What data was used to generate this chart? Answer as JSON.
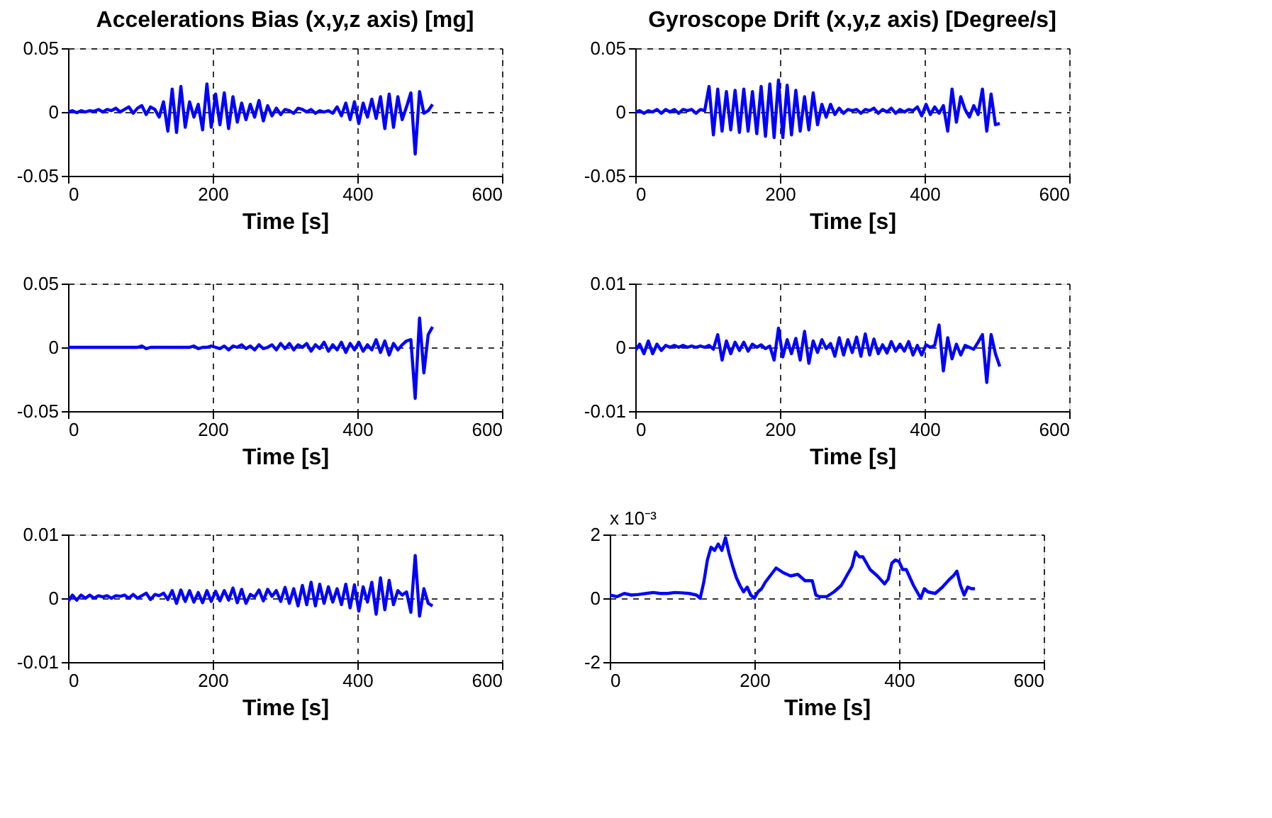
{
  "chart_data": [
    {
      "type": "line",
      "title": "Accelerations Bias (x,y,z axis) [mg]",
      "xlabel": "Time [s]",
      "xlim": [
        0,
        600
      ],
      "xticks": [
        0,
        200,
        400,
        600
      ],
      "ylim": [
        -0.05,
        0.05
      ],
      "yticks": [
        -0.05,
        0,
        0.05
      ],
      "grid": true,
      "x": [
        0,
        6,
        12,
        18,
        24,
        30,
        36,
        42,
        48,
        54,
        60,
        66,
        72,
        78,
        84,
        90,
        96,
        102,
        108,
        114,
        120,
        126,
        132,
        138,
        144,
        150,
        156,
        162,
        168,
        174,
        180,
        186,
        192,
        198,
        204,
        210,
        216,
        222,
        228,
        234,
        240,
        246,
        252,
        258,
        264,
        270,
        276,
        282,
        288,
        294,
        300,
        306,
        312,
        318,
        324,
        330,
        336,
        342,
        348,
        354,
        360,
        366,
        372,
        378,
        384,
        390,
        396,
        402,
        408,
        414,
        420,
        426,
        432,
        438,
        444,
        450,
        456,
        462,
        468,
        474,
        480,
        486,
        492,
        498,
        504
      ],
      "series": [
        {
          "color": "#0000ff",
          "values": [
            0,
            0.001,
            -0.0005,
            0.001,
            0,
            0.001,
            0.0005,
            0.002,
            0,
            0.002,
            0.001,
            0.003,
            0,
            0.002,
            0.004,
            -0.001,
            0.003,
            0.005,
            -0.002,
            0.004,
            0.002,
            -0.004,
            0.008,
            -0.015,
            0.018,
            -0.016,
            0.02,
            -0.012,
            0.008,
            -0.004,
            0.006,
            -0.014,
            0.022,
            -0.012,
            0.014,
            -0.01,
            0.015,
            -0.013,
            0.012,
            -0.008,
            0.007,
            -0.006,
            0.006,
            -0.004,
            0.009,
            -0.007,
            0.005,
            -0.003,
            0.003,
            -0.002,
            0.002,
            0.001,
            -0.001,
            0.003,
            0.002,
            0,
            0.002,
            -0.001,
            0.001,
            0,
            0.001,
            -0.001,
            0.004,
            -0.003,
            0.007,
            -0.006,
            0.008,
            -0.009,
            0.007,
            -0.004,
            0.01,
            -0.005,
            0.012,
            -0.013,
            0.014,
            -0.012,
            0.012,
            -0.006,
            0.004,
            0.015,
            -0.033,
            0.016,
            -0.001,
            0.001,
            0.006
          ]
        }
      ]
    },
    {
      "type": "line",
      "title": "Gyroscope Drift (x,y,z axis) [Degree/s]",
      "xlabel": "Time [s]",
      "xlim": [
        0,
        600
      ],
      "xticks": [
        0,
        200,
        400,
        600
      ],
      "ylim": [
        -0.05,
        0.05
      ],
      "yticks": [
        -0.05,
        0,
        0.05
      ],
      "grid": true,
      "x": [
        0,
        6,
        12,
        18,
        24,
        30,
        36,
        42,
        48,
        54,
        60,
        66,
        72,
        78,
        84,
        90,
        96,
        102,
        108,
        114,
        120,
        126,
        132,
        138,
        144,
        150,
        156,
        162,
        168,
        174,
        180,
        186,
        192,
        198,
        204,
        210,
        216,
        222,
        228,
        234,
        240,
        246,
        252,
        258,
        264,
        270,
        276,
        282,
        288,
        294,
        300,
        306,
        312,
        318,
        324,
        330,
        336,
        342,
        348,
        354,
        360,
        366,
        372,
        378,
        384,
        390,
        396,
        402,
        408,
        414,
        420,
        426,
        432,
        438,
        444,
        450,
        456,
        462,
        468,
        474,
        480,
        486,
        492,
        498,
        504
      ],
      "series": [
        {
          "color": "#0000ff",
          "values": [
            0,
            0.001,
            -0.001,
            0.001,
            0,
            0.002,
            -0.001,
            0.002,
            0,
            0.002,
            -0.001,
            0.002,
            0.001,
            0.002,
            -0.001,
            0.002,
            0.001,
            0.02,
            -0.018,
            0.018,
            -0.015,
            0.016,
            -0.014,
            0.017,
            -0.016,
            0.018,
            -0.015,
            0.016,
            -0.017,
            0.02,
            -0.019,
            0.022,
            -0.02,
            0.025,
            -0.02,
            0.021,
            -0.018,
            0.017,
            -0.015,
            0.012,
            -0.014,
            0.015,
            -0.01,
            0.006,
            -0.004,
            0.006,
            -0.002,
            0.003,
            -0.001,
            0.002,
            0.001,
            0.002,
            -0.001,
            0.002,
            0.001,
            0.003,
            -0.001,
            0.002,
            0,
            0.003,
            -0.001,
            0.002,
            0,
            0.002,
            0.001,
            0.004,
            -0.003,
            0.006,
            -0.002,
            0.004,
            -0.001,
            0.005,
            -0.015,
            0.018,
            -0.008,
            0.012,
            0.002,
            -0.004,
            0.005,
            -0.002,
            0.018,
            -0.015,
            0.014,
            -0.01,
            -0.009
          ]
        }
      ]
    },
    {
      "type": "line",
      "xlabel": "Time [s]",
      "xlim": [
        0,
        600
      ],
      "xticks": [
        0,
        200,
        400,
        600
      ],
      "ylim": [
        -0.05,
        0.05
      ],
      "yticks": [
        -0.05,
        0,
        0.05
      ],
      "grid": true,
      "x": [
        0,
        6,
        12,
        18,
        24,
        30,
        36,
        42,
        48,
        54,
        60,
        66,
        72,
        78,
        84,
        90,
        96,
        102,
        108,
        114,
        120,
        126,
        132,
        138,
        144,
        150,
        156,
        162,
        168,
        174,
        180,
        186,
        192,
        198,
        204,
        210,
        216,
        222,
        228,
        234,
        240,
        246,
        252,
        258,
        264,
        270,
        276,
        282,
        288,
        294,
        300,
        306,
        312,
        318,
        324,
        330,
        336,
        342,
        348,
        354,
        360,
        366,
        372,
        378,
        384,
        390,
        396,
        402,
        408,
        414,
        420,
        426,
        432,
        438,
        444,
        450,
        456,
        462,
        468,
        474,
        480,
        486,
        492,
        498,
        504
      ],
      "series": [
        {
          "color": "#0000ff",
          "values": [
            0,
            0,
            0,
            0,
            0,
            0,
            0,
            0,
            0,
            0,
            0,
            0,
            0,
            0,
            0,
            0,
            0,
            0.001,
            -0.001,
            0,
            0,
            0,
            0,
            0,
            0,
            0,
            0,
            0,
            0,
            0.001,
            -0.001,
            0,
            0,
            0.001,
            0,
            -0.001,
            0.001,
            -0.002,
            0.001,
            0,
            0.002,
            -0.001,
            0.001,
            -0.002,
            0.002,
            -0.001,
            0,
            0.002,
            -0.002,
            0.003,
            -0.001,
            0.003,
            -0.002,
            0.002,
            0,
            0.003,
            -0.003,
            0.002,
            -0.001,
            0.004,
            -0.003,
            0.002,
            -0.002,
            0.004,
            -0.004,
            0.003,
            -0.002,
            0.004,
            -0.003,
            0.002,
            -0.002,
            0.006,
            -0.004,
            0.005,
            -0.006,
            0.003,
            -0.002,
            0.002,
            0.005,
            0.006,
            -0.04,
            0.023,
            -0.02,
            0.01,
            0.016
          ]
        }
      ]
    },
    {
      "type": "line",
      "xlabel": "Time [s]",
      "xlim": [
        0,
        600
      ],
      "xticks": [
        0,
        200,
        400,
        600
      ],
      "ylim": [
        -0.01,
        0.01
      ],
      "yticks": [
        -0.01,
        0,
        0.01
      ],
      "grid": true,
      "x": [
        0,
        6,
        12,
        18,
        24,
        30,
        36,
        42,
        48,
        54,
        60,
        66,
        72,
        78,
        84,
        90,
        96,
        102,
        108,
        114,
        120,
        126,
        132,
        138,
        144,
        150,
        156,
        162,
        168,
        174,
        180,
        186,
        192,
        198,
        204,
        210,
        216,
        222,
        228,
        234,
        240,
        246,
        252,
        258,
        264,
        270,
        276,
        282,
        288,
        294,
        300,
        306,
        312,
        318,
        324,
        330,
        336,
        342,
        348,
        354,
        360,
        366,
        372,
        378,
        384,
        390,
        396,
        402,
        408,
        414,
        420,
        426,
        432,
        438,
        444,
        450,
        456,
        462,
        468,
        474,
        480,
        486,
        492,
        498,
        504
      ],
      "series": [
        {
          "color": "#0000ff",
          "values": [
            -0.0005,
            0.0005,
            -0.001,
            0.001,
            -0.001,
            0.0005,
            -0.0005,
            0.0003,
            0,
            0.0003,
            0,
            0.0003,
            0,
            0.0002,
            0,
            0.0002,
            0,
            0.0003,
            -0.0003,
            0.002,
            -0.002,
            0.001,
            -0.001,
            0.0008,
            -0.0005,
            0.0008,
            -0.0006,
            0.0005,
            0,
            0.0004,
            -0.0002,
            0.0002,
            -0.002,
            0.003,
            -0.0015,
            0.0012,
            -0.001,
            0.0014,
            -0.002,
            0.0025,
            -0.0025,
            0.001,
            -0.0008,
            0.0012,
            -0.0002,
            0.0006,
            -0.0014,
            0.0015,
            -0.0012,
            0.0012,
            -0.0008,
            0.0016,
            -0.0014,
            0.0021,
            -0.0012,
            0.0013,
            -0.001,
            0.0004,
            -0.0009,
            0.0009,
            -0.0006,
            0.0005,
            -0.0006,
            0.0009,
            -0.0012,
            0.0003,
            -0.0012,
            0.0004,
            0,
            0.0003,
            0.0035,
            -0.0037,
            0.0015,
            -0.0018,
            0.0005,
            -0.0012,
            0.0003,
            0,
            -0.0003,
            0.0008,
            0.002,
            -0.0055,
            0.002,
            -0.001,
            -0.003
          ]
        }
      ]
    },
    {
      "type": "line",
      "xlabel": "Time [s]",
      "xlim": [
        0,
        600
      ],
      "xticks": [
        0,
        200,
        400,
        600
      ],
      "ylim": [
        -0.01,
        0.01
      ],
      "yticks": [
        -0.01,
        0,
        0.01
      ],
      "grid": true,
      "x": [
        0,
        6,
        12,
        18,
        24,
        30,
        36,
        42,
        48,
        54,
        60,
        66,
        72,
        78,
        84,
        90,
        96,
        102,
        108,
        114,
        120,
        126,
        132,
        138,
        144,
        150,
        156,
        162,
        168,
        174,
        180,
        186,
        192,
        198,
        204,
        210,
        216,
        222,
        228,
        234,
        240,
        246,
        252,
        258,
        264,
        270,
        276,
        282,
        288,
        294,
        300,
        306,
        312,
        318,
        324,
        330,
        336,
        342,
        348,
        354,
        360,
        366,
        372,
        378,
        384,
        390,
        396,
        402,
        408,
        414,
        420,
        426,
        432,
        438,
        444,
        450,
        456,
        462,
        468,
        474,
        480,
        486,
        492,
        498,
        504
      ],
      "series": [
        {
          "color": "#0000ff",
          "values": [
            -0.0005,
            0.0005,
            -0.0003,
            0.0005,
            0,
            0.0005,
            0,
            0.0004,
            0.0002,
            0.0004,
            0,
            0.0004,
            0.0003,
            0.0005,
            0,
            0.0006,
            0,
            0.0004,
            0.0008,
            -0.0002,
            0.0006,
            0.0004,
            0.0008,
            -0.0002,
            0.0012,
            -0.0008,
            0.0013,
            -0.0005,
            0.0012,
            -0.0006,
            0.0009,
            -0.0007,
            0.0012,
            -0.0005,
            0.0011,
            -0.0004,
            0.0012,
            -0.0003,
            0.0016,
            -0.0007,
            0.0014,
            -0.0008,
            0.0006,
            0.0002,
            0.0013,
            -0.0004,
            0.0014,
            0.0003,
            0.0012,
            -0.0005,
            0.0017,
            -0.0008,
            0.0015,
            -0.0012,
            0.002,
            -0.001,
            0.0025,
            -0.0012,
            0.0022,
            -0.0008,
            0.0018,
            -0.0006,
            0.0015,
            -0.001,
            0.0022,
            -0.0015,
            0.0021,
            -0.002,
            0.0018,
            -0.0006,
            0.0025,
            -0.0025,
            0.0032,
            -0.0018,
            0.0028,
            -0.001,
            0.0012,
            0.0005,
            0.001,
            -0.0022,
            0.0067,
            -0.0028,
            0.0015,
            -0.0008,
            -0.0012
          ]
        }
      ]
    },
    {
      "type": "line",
      "xlabel": "Time [s]",
      "xlim": [
        0,
        600
      ],
      "xticks": [
        0,
        200,
        400,
        600
      ],
      "ylim": [
        -2,
        2
      ],
      "yticks": [
        -2,
        0,
        2
      ],
      "grid": true,
      "annotations": [
        "x 10⁻³"
      ],
      "x": [
        0,
        10,
        20,
        30,
        40,
        50,
        60,
        70,
        80,
        90,
        100,
        110,
        120,
        125,
        130,
        135,
        140,
        145,
        150,
        155,
        160,
        165,
        170,
        175,
        180,
        185,
        190,
        195,
        200,
        205,
        210,
        215,
        220,
        225,
        230,
        240,
        250,
        260,
        270,
        280,
        285,
        290,
        300,
        310,
        320,
        330,
        335,
        340,
        345,
        350,
        355,
        360,
        370,
        380,
        385,
        390,
        395,
        400,
        405,
        410,
        420,
        430,
        435,
        440,
        450,
        460,
        470,
        475,
        480,
        485,
        490,
        495,
        500,
        505
      ],
      "series": [
        {
          "color": "#0000ff",
          "values": [
            0.1,
            0.05,
            0.15,
            0.1,
            0.12,
            0.15,
            0.18,
            0.15,
            0.15,
            0.18,
            0.17,
            0.15,
            0.1,
            0,
            0.5,
            1.2,
            1.6,
            1.5,
            1.7,
            1.5,
            1.9,
            1.4,
            1.0,
            0.65,
            0.4,
            0.2,
            0.35,
            0.1,
            0,
            0.2,
            0.3,
            0.5,
            0.65,
            0.8,
            0.95,
            0.8,
            0.7,
            0.75,
            0.55,
            0.55,
            0.1,
            0.05,
            0.05,
            0.2,
            0.4,
            0.8,
            1.0,
            1.45,
            1.3,
            1.3,
            1.1,
            0.9,
            0.7,
            0.45,
            0.6,
            1.1,
            1.2,
            1.15,
            0.9,
            0.9,
            0.4,
            0.0,
            0.3,
            0.2,
            0.15,
            0.35,
            0.6,
            0.7,
            0.85,
            0.4,
            0.1,
            0.35,
            0.3,
            0.3
          ]
        }
      ]
    }
  ]
}
